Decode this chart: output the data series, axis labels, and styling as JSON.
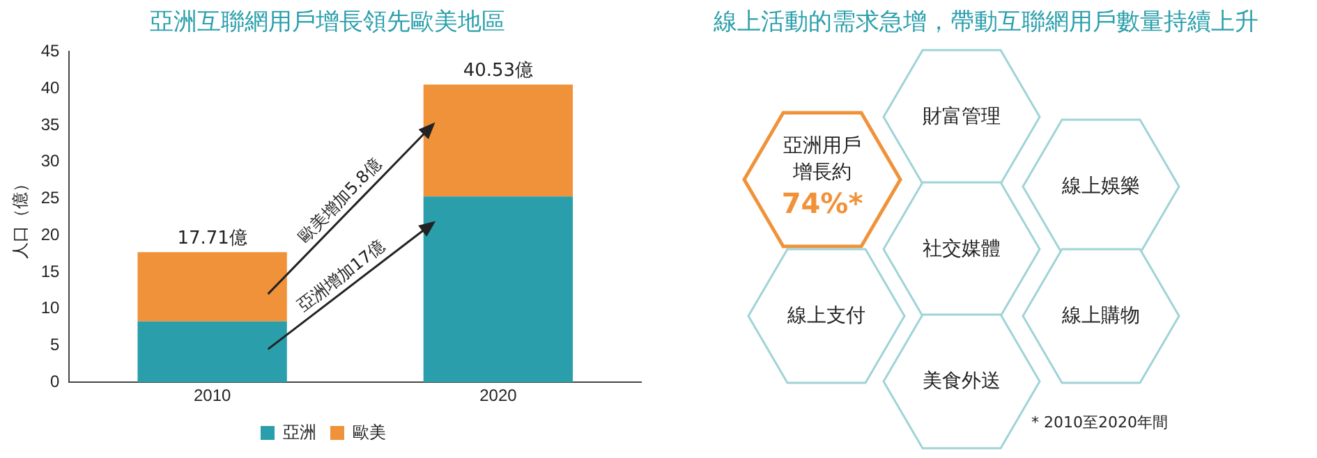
{
  "chart_data": [
    {
      "type": "bar",
      "title": "亞洲互聯網用戶增長領先歐美地區",
      "ylabel": "人口（億）",
      "categories": [
        "2010",
        "2020"
      ],
      "stacked": true,
      "series": [
        {
          "name": "亞洲",
          "color": "#2a9fab",
          "values": [
            8.3,
            25.3
          ]
        },
        {
          "name": "歐美",
          "color": "#f0923a",
          "values": [
            9.41,
            15.23
          ]
        }
      ],
      "totals": [
        "17.71億",
        "40.53億"
      ],
      "ylim": [
        0,
        45
      ],
      "yticks": [
        0,
        5,
        10,
        15,
        20,
        25,
        30,
        35,
        40,
        45
      ],
      "grid": false,
      "legend": "bottom",
      "annotations": [
        "歐美增加5.8億",
        "亞洲增加17億"
      ]
    },
    {
      "type": "other",
      "title": "線上活動的需求急增，帶動互聯網用戶數量持續上升",
      "annotations": [
        "亞洲用戶",
        "增長約",
        "74%*",
        "財富管理",
        "線上娛樂",
        "社交媒體",
        "線上支付",
        "線上購物",
        "美食外送",
        "* 2010至2020年間"
      ]
    }
  ]
}
